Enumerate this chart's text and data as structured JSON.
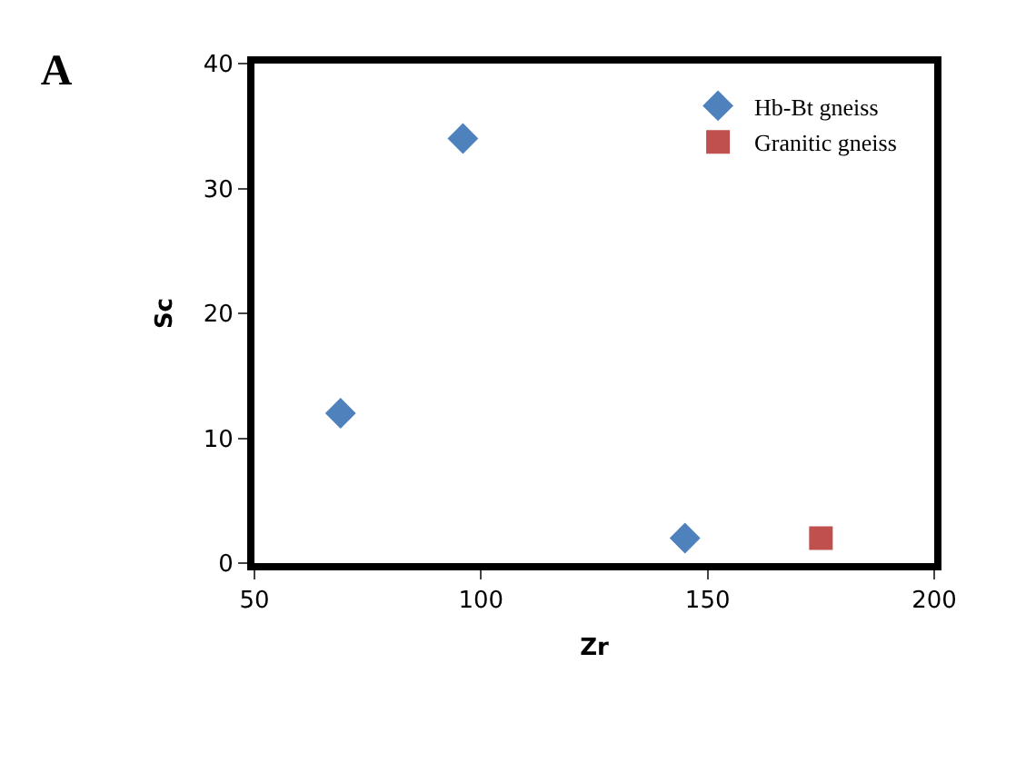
{
  "chart_data": {
    "type": "scatter",
    "title": "A",
    "xlabel": "Zr",
    "ylabel": "Sc",
    "xlim": [
      50,
      200
    ],
    "xticks": [
      50,
      100,
      150,
      200
    ],
    "ylim": [
      0,
      40
    ],
    "yticks": [
      0,
      10,
      20,
      30,
      40
    ],
    "legend": "top right",
    "series": [
      {
        "name": "Hb-Bt gneiss",
        "color": "#4f81bd",
        "marker": "diamond",
        "x": [
          69,
          96,
          145
        ],
        "values": [
          12,
          34,
          2
        ]
      },
      {
        "name": "Granitic gneiss",
        "color": "#c0504d",
        "marker": "square",
        "x": [
          175
        ],
        "values": [
          2
        ]
      }
    ]
  }
}
